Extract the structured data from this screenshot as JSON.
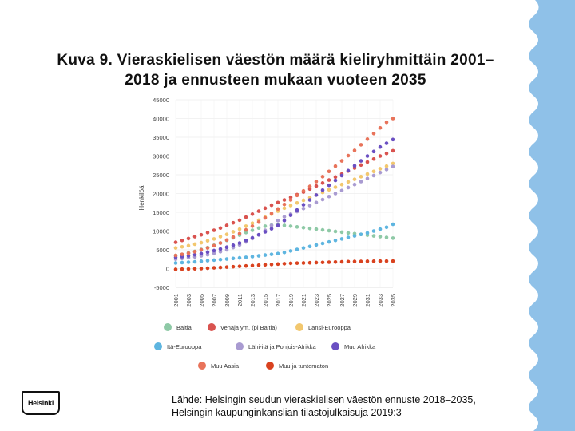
{
  "title": {
    "line1": "Kuva 9. Vieraskielisen väestön määrä kieliryhmittäin 2001–",
    "line2": "2018 ja ennusteen mukaan vuoteen 2035"
  },
  "source": {
    "line1": "Lähde: Helsingin seudun vieraskielisen väestön ennuste 2018–2035,",
    "line2": "Helsingin kaupunginkanslian tilastojulkaisuja 2019:3"
  },
  "logo": {
    "text": "Helsinki"
  },
  "chart_data": {
    "type": "scatter",
    "title": "",
    "xlabel": "",
    "ylabel": "Henkilöä",
    "ylim": [
      -5000,
      45000
    ],
    "yticks": [
      -5000,
      0,
      5000,
      10000,
      15000,
      20000,
      25000,
      30000,
      35000,
      40000,
      45000
    ],
    "ytick_labels": [
      "-5000",
      "0",
      "5000",
      "10000",
      "15000",
      "20000",
      "25000",
      "30000",
      "35000",
      "40000",
      "45000"
    ],
    "xlim": [
      2001,
      2035
    ],
    "xtick_labels": [
      "2001",
      "2003",
      "2005",
      "2007",
      "2009",
      "2011",
      "2013",
      "2015",
      "2017",
      "2019",
      "2021",
      "2023",
      "2025",
      "2027",
      "2029",
      "2031",
      "2033",
      "2035"
    ],
    "series": [
      {
        "name": "Baltia",
        "color": "#8ec9a6",
        "values": [
          3500,
          3800,
          4200,
          4600,
          5100,
          5600,
          6200,
          6800,
          7500,
          8200,
          8900,
          9600,
          10200,
          10800,
          11300,
          11600,
          11700,
          11500,
          11300,
          11100,
          10900,
          10700,
          10500,
          10300,
          10100,
          9900,
          9700,
          9500,
          9300,
          9100,
          8900,
          8700,
          8500,
          8300,
          8100
        ]
      },
      {
        "name": "Venäjä ym. (pl Baltia)",
        "color": "#d9534f",
        "values": [
          7000,
          7500,
          8000,
          8500,
          9000,
          9600,
          10200,
          10800,
          11500,
          12200,
          12900,
          13700,
          14500,
          15300,
          16100,
          16900,
          17600,
          18300,
          19000,
          19700,
          20400,
          21200,
          22000,
          22800,
          23600,
          24400,
          25200,
          26000,
          26800,
          27600,
          28400,
          29200,
          30000,
          30700,
          31400
        ]
      },
      {
        "name": "Länsi-Eurooppa",
        "color": "#f2c76e",
        "values": [
          5500,
          5800,
          6100,
          6500,
          6900,
          7400,
          7900,
          8500,
          9100,
          9800,
          10500,
          11300,
          12100,
          12900,
          13700,
          14500,
          15300,
          16100,
          16800,
          17500,
          18200,
          18900,
          19600,
          20300,
          21000,
          21700,
          22400,
          23100,
          23800,
          24500,
          25200,
          25900,
          26600,
          27300,
          28000
        ]
      },
      {
        "name": "Itä-Eurooppa",
        "color": "#5eb5e0",
        "values": [
          1500,
          1600,
          1700,
          1800,
          1950,
          2100,
          2250,
          2400,
          2550,
          2700,
          2850,
          3000,
          3200,
          3400,
          3600,
          3800,
          4000,
          4300,
          4700,
          5100,
          5500,
          5900,
          6300,
          6700,
          7100,
          7500,
          7900,
          8300,
          8700,
          9100,
          9500,
          10000,
          10500,
          11000,
          11800
        ]
      },
      {
        "name": "Lähi-itä ja Pohjois-Afrikka",
        "color": "#a99bd1",
        "values": [
          2500,
          2700,
          2900,
          3100,
          3400,
          3700,
          4100,
          4500,
          5000,
          5600,
          6300,
          7100,
          8000,
          9000,
          10200,
          11500,
          12800,
          13800,
          14500,
          15200,
          16000,
          16800,
          17600,
          18400,
          19200,
          20000,
          20800,
          21600,
          22400,
          23200,
          24000,
          24800,
          25600,
          26400,
          27200
        ]
      },
      {
        "name": "Muu Afrikka",
        "color": "#6a4fc2",
        "values": [
          3000,
          3200,
          3400,
          3700,
          4000,
          4400,
          4800,
          5200,
          5700,
          6200,
          6800,
          7500,
          8200,
          9000,
          9800,
          10600,
          11500,
          12800,
          14200,
          15600,
          17000,
          18300,
          19600,
          20900,
          22200,
          23500,
          24800,
          26100,
          27400,
          28700,
          30000,
          31200,
          32400,
          33400,
          34400
        ]
      },
      {
        "name": "Muu Aasia",
        "color": "#e8735a",
        "values": [
          3500,
          3800,
          4100,
          4500,
          5000,
          5500,
          6100,
          6800,
          7600,
          8400,
          9300,
          10300,
          11300,
          12400,
          13500,
          14700,
          15900,
          17100,
          18300,
          19500,
          20700,
          21900,
          23200,
          24500,
          25900,
          27300,
          28700,
          30100,
          31500,
          33000,
          34500,
          36000,
          37500,
          39000,
          40000
        ]
      },
      {
        "name": "Muu ja tuntematon",
        "color": "#d9421f",
        "values": [
          -200,
          -150,
          -100,
          -50,
          0,
          100,
          200,
          300,
          400,
          500,
          600,
          700,
          800,
          900,
          1000,
          1100,
          1200,
          1300,
          1400,
          1450,
          1500,
          1550,
          1600,
          1650,
          1700,
          1750,
          1800,
          1850,
          1900,
          1900,
          1950,
          1950,
          2000,
          2000,
          2000
        ]
      }
    ]
  }
}
